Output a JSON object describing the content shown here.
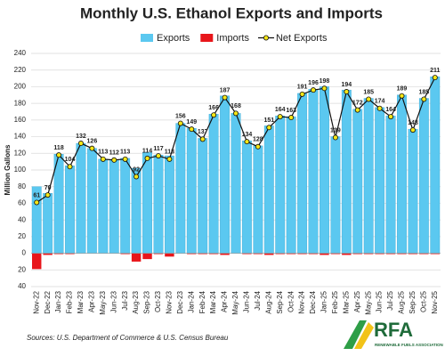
{
  "chart_data": {
    "type": "bar",
    "title": "Monthly U.S. Ethanol Exports and Imports",
    "y_label": "Million Gallons",
    "source": "Sources: U.S. Department of Commerce & U.S. Census Bureau",
    "categories": [
      "Nov-22",
      "Dec-22",
      "Jan-23",
      "Feb-23",
      "Mar-23",
      "Apr-23",
      "May-23",
      "Jun-23",
      "Jul-23",
      "Aug-23",
      "Sep-23",
      "Oct-23",
      "Nov-23",
      "Dec-23",
      "Jan-24",
      "Feb-24",
      "Mar-24",
      "Apr-24",
      "May-24",
      "Jun-24",
      "Jul-24",
      "Aug-24",
      "Sep-24",
      "Oct-24",
      "Nov-24",
      "Dec-24",
      "Jan-25",
      "Feb-25",
      "Mar-25",
      "Apr-25",
      "May-25",
      "Jun-25",
      "Jul-25",
      "Aug-25",
      "Sep-25",
      "Oct-25",
      "Nov-25"
    ],
    "series": [
      {
        "name": "Exports",
        "type": "bar",
        "color": "#5bc8f0",
        "values": [
          80,
          72,
          119,
          105,
          132,
          126,
          113,
          112,
          114,
          102,
          121,
          118,
          117,
          156,
          150,
          138,
          167,
          189,
          168,
          135,
          129,
          153,
          165,
          164,
          192,
          197,
          200,
          140,
          196,
          173,
          186,
          175,
          165,
          190,
          149,
          186,
          212
        ]
      },
      {
        "name": "Imports",
        "type": "bar",
        "color": "#e8161b",
        "values": [
          -19,
          -2,
          -1,
          -1,
          0,
          0,
          0,
          0,
          -1,
          -10,
          -7,
          -1,
          -4,
          0,
          -1,
          -1,
          -1,
          -2,
          0,
          -1,
          -1,
          -2,
          -1,
          -1,
          -1,
          -1,
          -2,
          -1,
          -2,
          -1,
          -1,
          -1,
          -1,
          -1,
          -1,
          -1,
          -1
        ]
      },
      {
        "name": "Net Exports",
        "type": "line",
        "color": "#111111",
        "marker_color": "#f5e616",
        "values": [
          61,
          70,
          118,
          104,
          132,
          126,
          113,
          112,
          113,
          92,
          114,
          117,
          113,
          156,
          149,
          137,
          166,
          187,
          168,
          134,
          128,
          151,
          164,
          163,
          191,
          196,
          198,
          139,
          194,
          172,
          185,
          174,
          164,
          189,
          148,
          185,
          211
        ]
      }
    ],
    "ylim": [
      -40,
      240
    ],
    "yticks": [
      {
        "value": -40,
        "label": "40"
      },
      {
        "value": -20,
        "label": "20"
      },
      0,
      20,
      40,
      60,
      80,
      100,
      120,
      140,
      160,
      180,
      200,
      220,
      240
    ],
    "grid": true
  },
  "logo": {
    "name": "RFA",
    "tagline": "RENEWABLE FUELS ASSOCIATION"
  }
}
